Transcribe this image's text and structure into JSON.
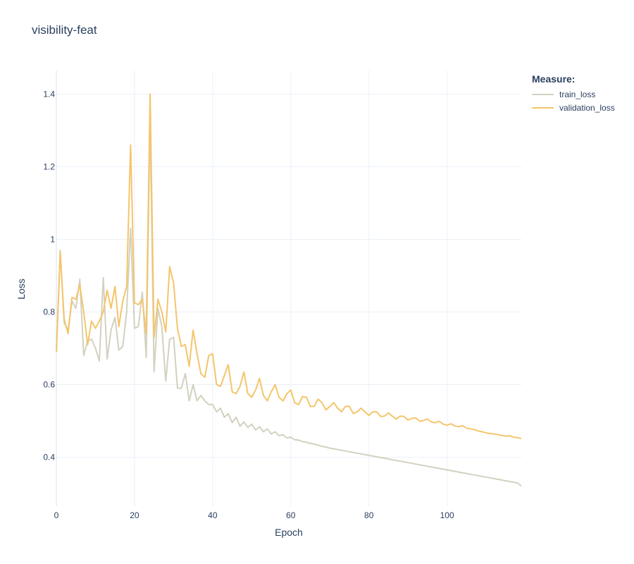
{
  "chart_data": {
    "type": "line",
    "title": "visibility-feat",
    "xlabel": "Epoch",
    "ylabel": "Loss",
    "xlim": [
      0,
      119
    ],
    "ylim": [
      0.265,
      1.465
    ],
    "x_ticks": [
      0,
      20,
      40,
      60,
      80,
      100
    ],
    "y_ticks": [
      0.4,
      0.6,
      0.8,
      1,
      1.2,
      1.4
    ],
    "y_tick_labels": [
      "0.4",
      "0.6",
      "0.8",
      "1",
      "1.2",
      "1.4"
    ],
    "grid": true,
    "legend_title": "Measure:",
    "legend_position": "top-right",
    "x": [
      0,
      1,
      2,
      3,
      4,
      5,
      6,
      7,
      8,
      9,
      10,
      11,
      12,
      13,
      14,
      15,
      16,
      17,
      18,
      19,
      20,
      21,
      22,
      23,
      24,
      25,
      26,
      27,
      28,
      29,
      30,
      31,
      32,
      33,
      34,
      35,
      36,
      37,
      38,
      39,
      40,
      41,
      42,
      43,
      44,
      45,
      46,
      47,
      48,
      49,
      50,
      51,
      52,
      53,
      54,
      55,
      56,
      57,
      58,
      59,
      60,
      61,
      62,
      63,
      64,
      65,
      66,
      67,
      68,
      69,
      70,
      71,
      72,
      73,
      74,
      75,
      76,
      77,
      78,
      79,
      80,
      81,
      82,
      83,
      84,
      85,
      86,
      87,
      88,
      89,
      90,
      91,
      92,
      93,
      94,
      95,
      96,
      97,
      98,
      99,
      100,
      101,
      102,
      103,
      104,
      105,
      106,
      107,
      108,
      109,
      110,
      111,
      112,
      113,
      114,
      115,
      116,
      117,
      118,
      119
    ],
    "series": [
      {
        "name": "train_loss",
        "color": "#d3d1c0",
        "values": [
          0.69,
          0.97,
          0.77,
          0.75,
          0.83,
          0.81,
          0.89,
          0.68,
          0.72,
          0.725,
          0.7,
          0.665,
          0.895,
          0.67,
          0.75,
          0.785,
          0.695,
          0.705,
          0.8,
          1.03,
          0.755,
          0.76,
          0.855,
          0.675,
          1.33,
          0.635,
          0.81,
          0.76,
          0.61,
          0.725,
          0.73,
          0.59,
          0.59,
          0.63,
          0.555,
          0.6,
          0.555,
          0.57,
          0.555,
          0.545,
          0.545,
          0.525,
          0.535,
          0.51,
          0.52,
          0.495,
          0.51,
          0.485,
          0.497,
          0.482,
          0.491,
          0.475,
          0.484,
          0.47,
          0.478,
          0.464,
          0.47,
          0.459,
          0.462,
          0.453,
          0.455,
          0.448,
          0.447,
          0.443,
          0.441,
          0.438,
          0.436,
          0.433,
          0.43,
          0.428,
          0.425,
          0.423,
          0.421,
          0.419,
          0.417,
          0.415,
          0.413,
          0.411,
          0.409,
          0.407,
          0.405,
          0.403,
          0.401,
          0.399,
          0.397,
          0.395,
          0.393,
          0.391,
          0.389,
          0.387,
          0.385,
          0.383,
          0.381,
          0.379,
          0.377,
          0.375,
          0.373,
          0.371,
          0.369,
          0.367,
          0.365,
          0.363,
          0.361,
          0.359,
          0.357,
          0.355,
          0.353,
          0.351,
          0.349,
          0.347,
          0.345,
          0.343,
          0.341,
          0.339,
          0.337,
          0.335,
          0.333,
          0.331,
          0.329,
          0.321
        ]
      },
      {
        "name": "validation_loss",
        "color": "#f4c56b",
        "values": [
          0.69,
          0.965,
          0.78,
          0.74,
          0.84,
          0.835,
          0.875,
          0.8,
          0.71,
          0.775,
          0.755,
          0.775,
          0.8,
          0.86,
          0.81,
          0.87,
          0.76,
          0.83,
          0.87,
          1.26,
          0.825,
          0.82,
          0.835,
          0.74,
          1.4,
          0.73,
          0.835,
          0.8,
          0.745,
          0.925,
          0.88,
          0.755,
          0.705,
          0.71,
          0.65,
          0.75,
          0.685,
          0.63,
          0.62,
          0.68,
          0.685,
          0.6,
          0.595,
          0.625,
          0.655,
          0.58,
          0.575,
          0.595,
          0.635,
          0.575,
          0.565,
          0.585,
          0.617,
          0.57,
          0.555,
          0.58,
          0.6,
          0.565,
          0.555,
          0.575,
          0.585,
          0.55,
          0.545,
          0.567,
          0.565,
          0.54,
          0.54,
          0.56,
          0.55,
          0.53,
          0.54,
          0.55,
          0.535,
          0.525,
          0.54,
          0.54,
          0.52,
          0.525,
          0.535,
          0.525,
          0.515,
          0.525,
          0.525,
          0.512,
          0.513,
          0.522,
          0.513,
          0.505,
          0.513,
          0.512,
          0.502,
          0.507,
          0.508,
          0.499,
          0.501,
          0.505,
          0.497,
          0.495,
          0.499,
          0.491,
          0.488,
          0.492,
          0.486,
          0.484,
          0.487,
          0.48,
          0.478,
          0.476,
          0.472,
          0.47,
          0.467,
          0.465,
          0.464,
          0.462,
          0.46,
          0.458,
          0.459,
          0.455,
          0.454,
          0.451
        ]
      }
    ]
  }
}
